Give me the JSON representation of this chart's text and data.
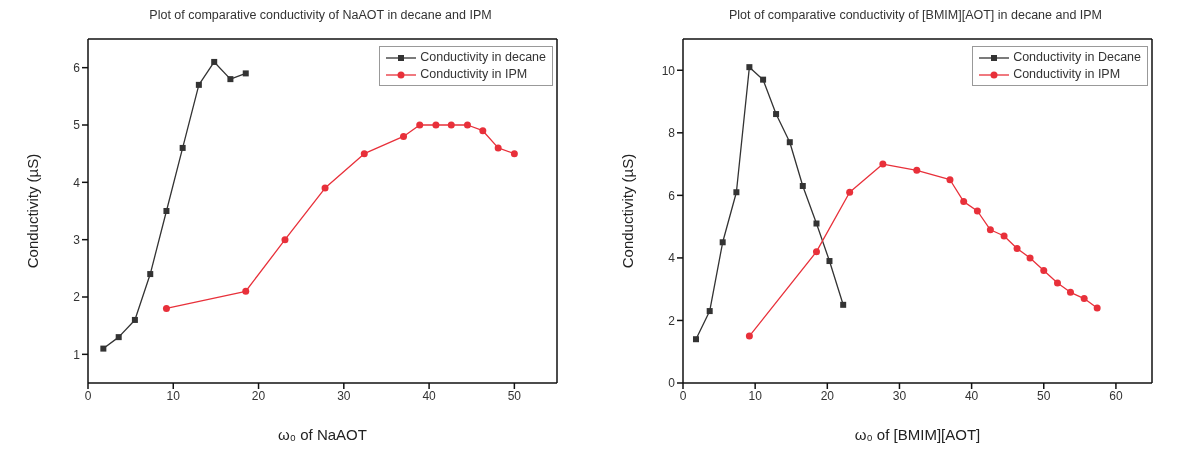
{
  "chart_data": [
    {
      "type": "line",
      "title": "Plot of comparative conductivity of NaAOT in decane and IPM",
      "xlabel": "ω₀ of NaAOT",
      "ylabel": "Conductivity (µS)",
      "xlim": [
        0,
        55
      ],
      "xticks": [
        0,
        10,
        20,
        30,
        40,
        50
      ],
      "ylim": [
        0.5,
        6.5
      ],
      "yticks": [
        1,
        2,
        3,
        4,
        5,
        6
      ],
      "grid": false,
      "legend": "top right",
      "series": [
        {
          "name": "Conductivity in decane",
          "color": "#333333",
          "marker": "square",
          "x": [
            1.8,
            3.6,
            5.5,
            7.3,
            9.2,
            11.1,
            13,
            14.8,
            16.7,
            18.5
          ],
          "values": [
            1.1,
            1.3,
            1.6,
            2.4,
            3.5,
            4.6,
            5.7,
            6.1,
            5.8,
            5.9
          ]
        },
        {
          "name": "Conductivity in IPM",
          "color": "#e8303a",
          "marker": "circle",
          "x": [
            9.2,
            18.5,
            23.1,
            27.8,
            32.4,
            37,
            38.9,
            40.8,
            42.6,
            44.5,
            46.3,
            48.1,
            50
          ],
          "values": [
            1.8,
            2.1,
            3.0,
            3.9,
            4.5,
            4.8,
            5.0,
            5.0,
            5.0,
            5.0,
            4.9,
            4.6,
            4.5
          ]
        }
      ]
    },
    {
      "type": "line",
      "title": "Plot of comparative conductivity of [BMIM][AOT] in decane and IPM",
      "xlabel": "ω₀ of [BMIM][AOT]",
      "ylabel": "Conductivity (µS)",
      "xlim": [
        0,
        65
      ],
      "xticks": [
        0,
        10,
        20,
        30,
        40,
        50,
        60
      ],
      "ylim": [
        0,
        11
      ],
      "yticks": [
        0,
        2,
        4,
        6,
        8,
        10
      ],
      "grid": false,
      "legend": "top right",
      "series": [
        {
          "name": "Conductivity in Decane",
          "color": "#333333",
          "marker": "square",
          "x": [
            1.8,
            3.7,
            5.5,
            7.4,
            9.2,
            11.1,
            12.9,
            14.8,
            16.6,
            18.5,
            20.3,
            22.2
          ],
          "values": [
            1.4,
            2.3,
            4.5,
            6.1,
            10.1,
            9.7,
            8.6,
            7.7,
            6.3,
            5.1,
            3.9,
            2.5
          ]
        },
        {
          "name": "Conductivity in IPM",
          "color": "#e8303a",
          "marker": "circle",
          "x": [
            9.2,
            18.5,
            23.1,
            27.7,
            32.4,
            37,
            38.9,
            40.8,
            42.6,
            44.5,
            46.3,
            48.1,
            50,
            51.9,
            53.7,
            55.6,
            57.4
          ],
          "values": [
            1.5,
            4.2,
            6.1,
            7.0,
            6.8,
            6.5,
            5.8,
            5.5,
            4.9,
            4.7,
            4.3,
            4.0,
            3.6,
            3.2,
            2.9,
            2.7,
            2.4
          ]
        }
      ]
    }
  ]
}
